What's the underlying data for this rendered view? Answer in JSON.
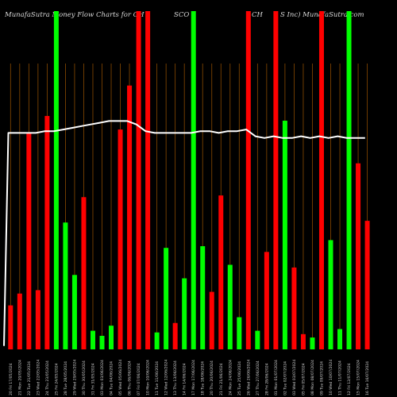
{
  "header": {
    "left": "MunafaSutra  Money Flow  Charts for CH",
    "mid1": "SCO",
    "mid2": "CH",
    "right": "S Inc) MunafaSutra.com"
  },
  "colors": {
    "background": "#000000",
    "up": "#00ff00",
    "down": "#ff0000",
    "grid": "#8a4a00",
    "line": "#ffffff"
  },
  "chart_data": {
    "type": "bar",
    "ylim": [
      0,
      100
    ],
    "categories": [
      "20 Fri 17/05/2024",
      "21 Mon 20/05/2024",
      "22 Tue 21/05/2024",
      "23 Wed 22/05/2024",
      "24 Thu 23/05/2024",
      "25 Fri 24/05/2024",
      "28 Tue 28/05/2024",
      "29 Wed 29/05/2024",
      "30 Thu 30/05/2024",
      "31 Fri 31/05/2024",
      "03 Mon 03/06/2024",
      "04 Tue 04/06/2024",
      "05 Wed 05/06/2024",
      "06 Thu 06/06/2024",
      "07 Fri 07/06/2024",
      "10 Mon 10/06/2024",
      "11 Tue 11/06/2024",
      "12 Wed 12/06/2024",
      "13 Thu 13/06/2024",
      "14 Fri 14/06/2024",
      "17 Mon 17/06/2024",
      "18 Tue 18/06/2024",
      "20 Thu 20/06/2024",
      "21 Fri 21/06/2024",
      "24 Mon 24/06/2024",
      "25 Tue 25/06/2024",
      "26 Wed 26/06/2024",
      "27 Thu 27/06/2024",
      "28 Fri 28/06/2024",
      "01 Mon 01/07/2024",
      "02 Tue 02/07/2024",
      "03 Wed 03/07/2024",
      "05 Fri 05/07/2024",
      "08 Mon 08/07/2024",
      "09 Tue 09/07/2024",
      "10 Wed 10/07/2024",
      "11 Thu 11/07/2024",
      "12 Fri 12/07/2024",
      "15 Mon 15/07/2024",
      "16 Tue 16/07/2024"
    ],
    "values": [
      13,
      16.5,
      64,
      17.5,
      69,
      100,
      37.5,
      22,
      45,
      5.5,
      4,
      7,
      65,
      78,
      100,
      100,
      5,
      30,
      7.8,
      21,
      100,
      30.5,
      17,
      45.5,
      25,
      9.5,
      100,
      5.5,
      28.8,
      100,
      67.6,
      24.2,
      4.5,
      3.5,
      100,
      32.3,
      6,
      100,
      55,
      38
    ],
    "colors": [
      "red",
      "red",
      "red",
      "red",
      "red",
      "green",
      "green",
      "green",
      "red",
      "green",
      "green",
      "green",
      "red",
      "red",
      "red",
      "red",
      "green",
      "green",
      "red",
      "green",
      "green",
      "green",
      "red",
      "red",
      "green",
      "green",
      "red",
      "green",
      "red",
      "red",
      "green",
      "red",
      "red",
      "green",
      "red",
      "green",
      "green",
      "green",
      "red",
      "red"
    ],
    "line_values": [
      1,
      64,
      64,
      64,
      64.5,
      64.5,
      65,
      65.5,
      66,
      66.5,
      67,
      67.5,
      67.5,
      67.5,
      66.5,
      64.5,
      64,
      64,
      64,
      64,
      64,
      64.5,
      64.5,
      64,
      64.5,
      64.5,
      65,
      63,
      62.5,
      63,
      62.5,
      62.5,
      63,
      62.5,
      63,
      62.5,
      63,
      62.5,
      62.5,
      62.5
    ]
  }
}
